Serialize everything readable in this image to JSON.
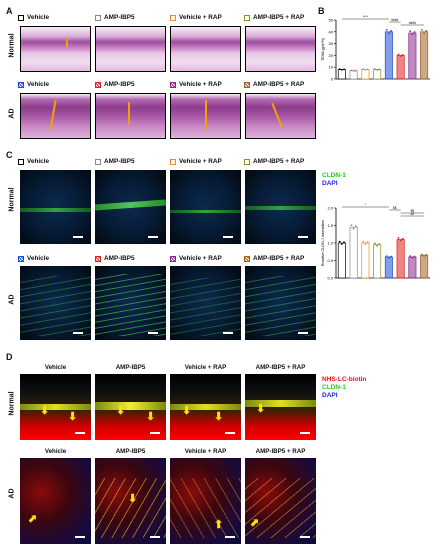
{
  "panels": {
    "A": "A",
    "B": "B",
    "C": "C",
    "D": "D"
  },
  "row_labels": {
    "normal": "Normal",
    "ad": "AD"
  },
  "legend_normal": [
    {
      "label": "Vehicle",
      "color": "#000000"
    },
    {
      "label": "AMP-IBP5",
      "color": "#888888"
    },
    {
      "label": "Vehicle + RAP",
      "color": "#f08a24"
    },
    {
      "label": "AMP-IBP5 + RAP",
      "color": "#8a8a2a"
    }
  ],
  "legend_ad": [
    {
      "label": "Vehicle",
      "color": "#1f4fd6"
    },
    {
      "label": "AMP-IBP5",
      "color": "#e02020"
    },
    {
      "label": "Vehicle + RAP",
      "color": "#8a2a8a"
    },
    {
      "label": "AMP-IBP5 + RAP",
      "color": "#a0602a"
    }
  ],
  "panel_d_titles": [
    "Vehicle",
    "AMP-IBP5",
    "Vehicle + RAP",
    "AMP-IBP5 + RAP"
  ],
  "panel_c_stain_labels": {
    "cldn": "CLDN-1",
    "dapi": "DAPI"
  },
  "panel_d_stain_labels": {
    "nhs": "NHS-LC-biotin",
    "cldn": "CLDN-1",
    "dapi": "DAPI"
  },
  "chart_data": [
    {
      "type": "bar",
      "ylabel": "TEWL(g/m²h)",
      "ylim": [
        0,
        50
      ],
      "yticks": [
        "0",
        "10",
        "20",
        "30",
        "40",
        "50"
      ],
      "categories": [
        "Normal Vehicle",
        "Normal AMP-IBP5",
        "Normal Vehicle + RAP",
        "Normal AMP-IBP5 + RAP",
        "AD Vehicle",
        "AD AMP-IBP5",
        "AD Vehicle + RAP",
        "AD AMP-IBP5 + RAP"
      ],
      "values": [
        8,
        7,
        8,
        8,
        40,
        20,
        39,
        40
      ],
      "colors": [
        "#000000",
        "#888888",
        "#f08a24",
        "#8a8a2a",
        "#1f4fd6",
        "#e02020",
        "#8a2a8a",
        "#a0602a"
      ],
      "significance": [
        "****",
        "####",
        "####"
      ]
    },
    {
      "type": "bar",
      "ylabel": "Relative CLDN-1 intensities",
      "ylim": [
        0,
        2
      ],
      "yticks": [
        "0.0",
        "0.5",
        "1.0",
        "1.5",
        "2.0"
      ],
      "categories": [
        "Normal Vehicle",
        "Normal AMP-IBP5",
        "Normal Vehicle + RAP",
        "Normal AMP-IBP5 + RAP",
        "AD Vehicle",
        "AD AMP-IBP5",
        "AD Vehicle + RAP",
        "AD AMP-IBP5 + RAP"
      ],
      "values": [
        1.0,
        1.45,
        1.0,
        0.95,
        0.6,
        1.1,
        0.6,
        0.65
      ],
      "colors": [
        "#000000",
        "#888888",
        "#f08a24",
        "#8a8a2a",
        "#1f4fd6",
        "#e02020",
        "#8a2a8a",
        "#a0602a"
      ],
      "significance": [
        "*",
        "$$",
        "$$",
        "##"
      ]
    }
  ]
}
